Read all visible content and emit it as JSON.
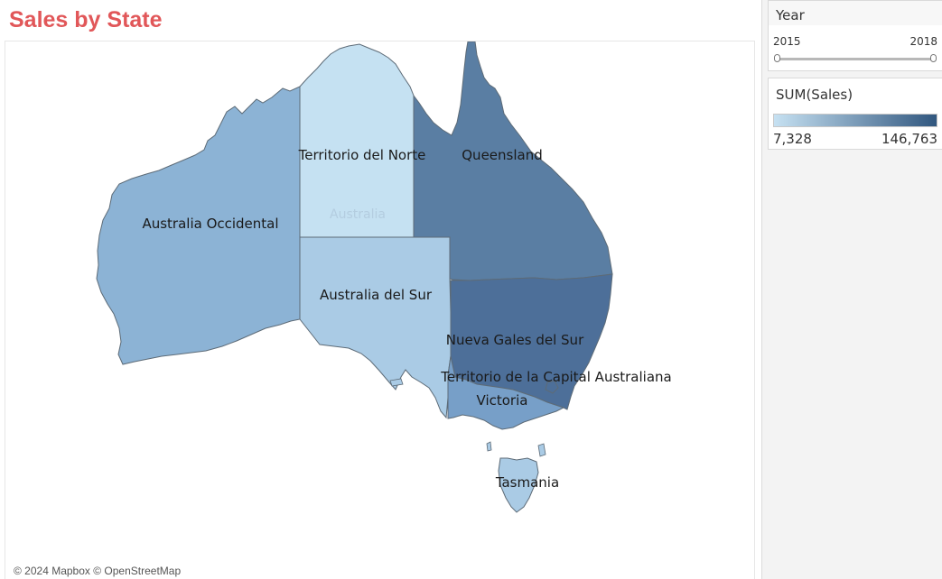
{
  "title": "Sales by State",
  "attribution": "© 2024 Mapbox © OpenStreetMap",
  "filter": {
    "label": "Year",
    "min_label": "2015",
    "max_label": "2018",
    "range": [
      2015,
      2018
    ]
  },
  "legend": {
    "title": "SUM(Sales)",
    "min_label": "7,328",
    "max_label": "146,763",
    "color_low": "#c6e1f2",
    "color_high": "#31577f"
  },
  "map": {
    "background_label": "Australia",
    "states": [
      {
        "key": "wa",
        "name": "Australia Occidental",
        "color": "#8cb3d5"
      },
      {
        "key": "nt",
        "name": "Territorio del Norte",
        "color": "#c5e1f2"
      },
      {
        "key": "qld",
        "name": "Queensland",
        "color": "#5a7ea3"
      },
      {
        "key": "sa",
        "name": "Australia del Sur",
        "color": "#aacbe5"
      },
      {
        "key": "nsw",
        "name": "Nueva Gales del Sur",
        "color": "#4d6f99"
      },
      {
        "key": "vic",
        "name": "Victoria",
        "color": "#779fc8"
      },
      {
        "key": "act",
        "name": "Territorio de la Capital Australiana",
        "color": "#4d6f99"
      },
      {
        "key": "tas",
        "name": "Tasmania",
        "color": "#aacbe5"
      }
    ]
  }
}
